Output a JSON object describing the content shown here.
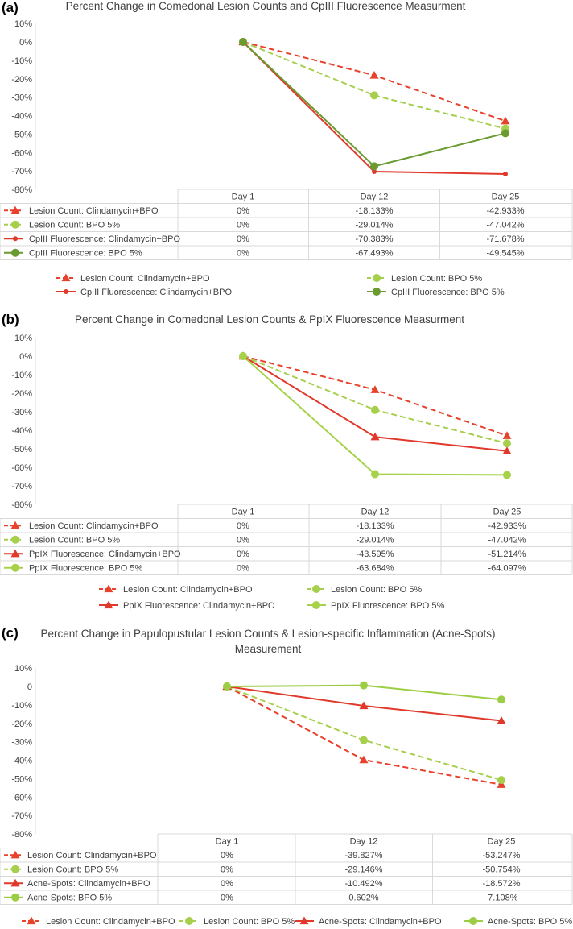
{
  "colors": {
    "lesion_clinda": "#e8412c",
    "lesion_bpo": "#a6cf4c",
    "fluor_clinda": "#e0392b",
    "cpiii_bpo": "#6a9a30",
    "ppix_bpo": "#a6d24a",
    "acne_bpo": "#9ccd44",
    "grid": "#d9d9d9",
    "text": "#404040"
  },
  "chart_data": [
    {
      "panel": "(a)",
      "type": "line",
      "title": "Percent Change in Comedonal Lesion Counts and CpIII Fluorescence Measurment",
      "categories": [
        "Day 1",
        "Day 12",
        "Day 25"
      ],
      "ylim": [
        -80,
        10
      ],
      "yticks": [
        "10%",
        "0%",
        "-10%",
        "-20%",
        "-30%",
        "-40%",
        "-50%",
        "-60%",
        "-70%",
        "-80%"
      ],
      "series": [
        {
          "name": "Lesion Count: Clindamycin+BPO",
          "values": [
            0,
            -18.133,
            -42.933
          ],
          "labels": [
            "0%",
            "-18.133%",
            "-42.933%"
          ],
          "color": "#e8412c",
          "dashed": true,
          "marker": "triangle"
        },
        {
          "name": "Lesion Count: BPO 5%",
          "values": [
            0,
            -29.014,
            -47.042
          ],
          "labels": [
            "0%",
            "-29.014%",
            "-47.042%"
          ],
          "color": "#a6cf4c",
          "dashed": true,
          "marker": "circle"
        },
        {
          "name": "CpIII Fluorescence: Clindamycin+BPO",
          "values": [
            0,
            -70.383,
            -71.678
          ],
          "labels": [
            "0%",
            "-70.383%",
            "-71.678%"
          ],
          "color": "#e0392b",
          "dashed": false,
          "marker": "smallcircle"
        },
        {
          "name": "CpIII Fluorescence: BPO 5%",
          "values": [
            0,
            -67.493,
            -49.545
          ],
          "labels": [
            "0%",
            "-67.493%",
            "-49.545%"
          ],
          "color": "#6a9a30",
          "dashed": false,
          "marker": "circle"
        }
      ],
      "legend": [
        "Lesion Count: Clindamycin+BPO",
        "Lesion Count: BPO 5%",
        "CpIII Fluorescence: Clindamycin+BPO",
        "CpIII Fluorescence: BPO 5%"
      ]
    },
    {
      "panel": "(b)",
      "type": "line",
      "title": "Percent Change in Comedonal Lesion Counts & PpIX Fluorescence Measurment",
      "categories": [
        "Day 1",
        "Day 12",
        "Day 25"
      ],
      "ylim": [
        -80,
        10
      ],
      "yticks": [
        "10%",
        "0%",
        "-10%",
        "-20%",
        "-30%",
        "-40%",
        "-50%",
        "-60%",
        "-70%",
        "-80%"
      ],
      "series": [
        {
          "name": "Lesion Count: Clindamycin+BPO",
          "values": [
            0,
            -18.133,
            -42.933
          ],
          "labels": [
            "0%",
            "-18.133%",
            "-42.933%"
          ],
          "color": "#e8412c",
          "dashed": true,
          "marker": "triangle"
        },
        {
          "name": "Lesion Count: BPO 5%",
          "values": [
            0,
            -29.014,
            -47.042
          ],
          "labels": [
            "0%",
            "-29.014%",
            "-47.042%"
          ],
          "color": "#a6cf4c",
          "dashed": true,
          "marker": "circle"
        },
        {
          "name": "PpIX Fluorescence: Clindamycin+BPO",
          "values": [
            0,
            -43.595,
            -51.214
          ],
          "labels": [
            "0%",
            "-43.595%",
            "-51.214%"
          ],
          "color": "#e0392b",
          "dashed": false,
          "marker": "triangle"
        },
        {
          "name": "PpIX Fluorescence: BPO 5%",
          "values": [
            0,
            -63.684,
            -64.097
          ],
          "labels": [
            "0%",
            "-63.684%",
            "-64.097%"
          ],
          "color": "#a6d24a",
          "dashed": false,
          "marker": "circle"
        }
      ],
      "legend": [
        "Lesion Count: Clindamycin+BPO",
        "Lesion Count: BPO 5%",
        "PpIX Fluorescence: Clindamycin+BPO",
        "PpIX Fluorescence: BPO 5%"
      ]
    },
    {
      "panel": "(c)",
      "type": "line",
      "title": "Percent Change in Papulopustular Lesion Counts & Lesion-specific Inflammation (Acne-Spots) Measurement",
      "title_lines": [
        "Percent Change in Papulopustular Lesion Counts & Lesion-specific Inflammation (Acne-Spots)",
        "Measurement"
      ],
      "categories": [
        "Day 1",
        "Day 12",
        "Day 25"
      ],
      "ylim": [
        -80,
        10
      ],
      "yticks": [
        "10%",
        "0",
        "-10%",
        "-20%",
        "-30%",
        "-40%",
        "-50%",
        "-60%",
        "-70%",
        "-80%"
      ],
      "series": [
        {
          "name": "Lesion Count: Clindamycin+BPO",
          "values": [
            0,
            -39.827,
            -53.247
          ],
          "labels": [
            "0%",
            "-39.827%",
            "-53.247%"
          ],
          "color": "#e8412c",
          "dashed": true,
          "marker": "triangle"
        },
        {
          "name": "Lesion Count: BPO 5%",
          "values": [
            0,
            -29.146,
            -50.754
          ],
          "labels": [
            "0%",
            "-29.146%",
            "-50.754%"
          ],
          "color": "#a6cf4c",
          "dashed": true,
          "marker": "circle"
        },
        {
          "name": "Acne-Spots: Clindamycin+BPO",
          "values": [
            0,
            -10.492,
            -18.572
          ],
          "labels": [
            "0%",
            "-10.492%",
            "-18.572%"
          ],
          "color": "#e0392b",
          "dashed": false,
          "marker": "triangle"
        },
        {
          "name": "Acne-Spots: BPO 5%",
          "values": [
            0,
            0.602,
            -7.108
          ],
          "labels": [
            "0%",
            "0.602%",
            "-7.108%"
          ],
          "color": "#9ccd44",
          "dashed": false,
          "marker": "circle"
        }
      ],
      "legend": [
        "Lesion Count: Clindamycin+BPO",
        "Lesion Count: BPO 5%",
        "Acne-Spots: Clindamycin+BPO",
        "Acne-Spots: BPO 5%"
      ]
    }
  ]
}
